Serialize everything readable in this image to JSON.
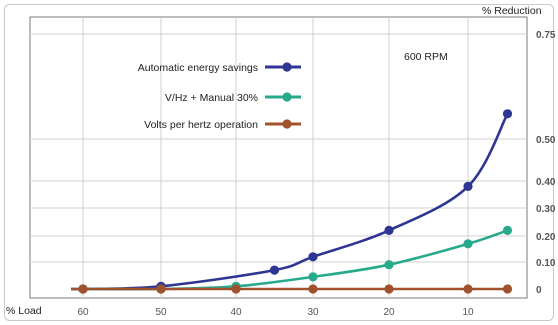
{
  "chart_data": {
    "type": "line",
    "title": "",
    "xlabel": "% Load",
    "ylabel": "% Reduction",
    "annotation": "600 RPM",
    "x_ticks": [
      "60",
      "50",
      "40",
      "30",
      "20",
      "10"
    ],
    "y_ticks": [
      "0",
      "0.10",
      "0.20",
      "0.30",
      "0.40",
      "0.50",
      "0.75"
    ],
    "xlim": [
      65,
      2
    ],
    "series": [
      {
        "name": "Automatic energy savings",
        "color": "#2e3592",
        "x": [
          60,
          50,
          35,
          30,
          20,
          10,
          5
        ],
        "y": [
          0,
          0.01,
          0.07,
          0.12,
          0.22,
          0.38,
          0.56
        ]
      },
      {
        "name": "V/Hz + Manual 30%",
        "color": "#27a98c",
        "x": [
          60,
          50,
          40,
          30,
          20,
          10,
          5
        ],
        "y": [
          0,
          0.0,
          0.01,
          0.045,
          0.09,
          0.17,
          0.22
        ]
      },
      {
        "name": "Volts per hertz operation",
        "color": "#a0522d",
        "x": [
          60,
          50,
          40,
          30,
          20,
          10,
          5
        ],
        "y": [
          0,
          0,
          0,
          0,
          0,
          0,
          0
        ]
      }
    ]
  }
}
